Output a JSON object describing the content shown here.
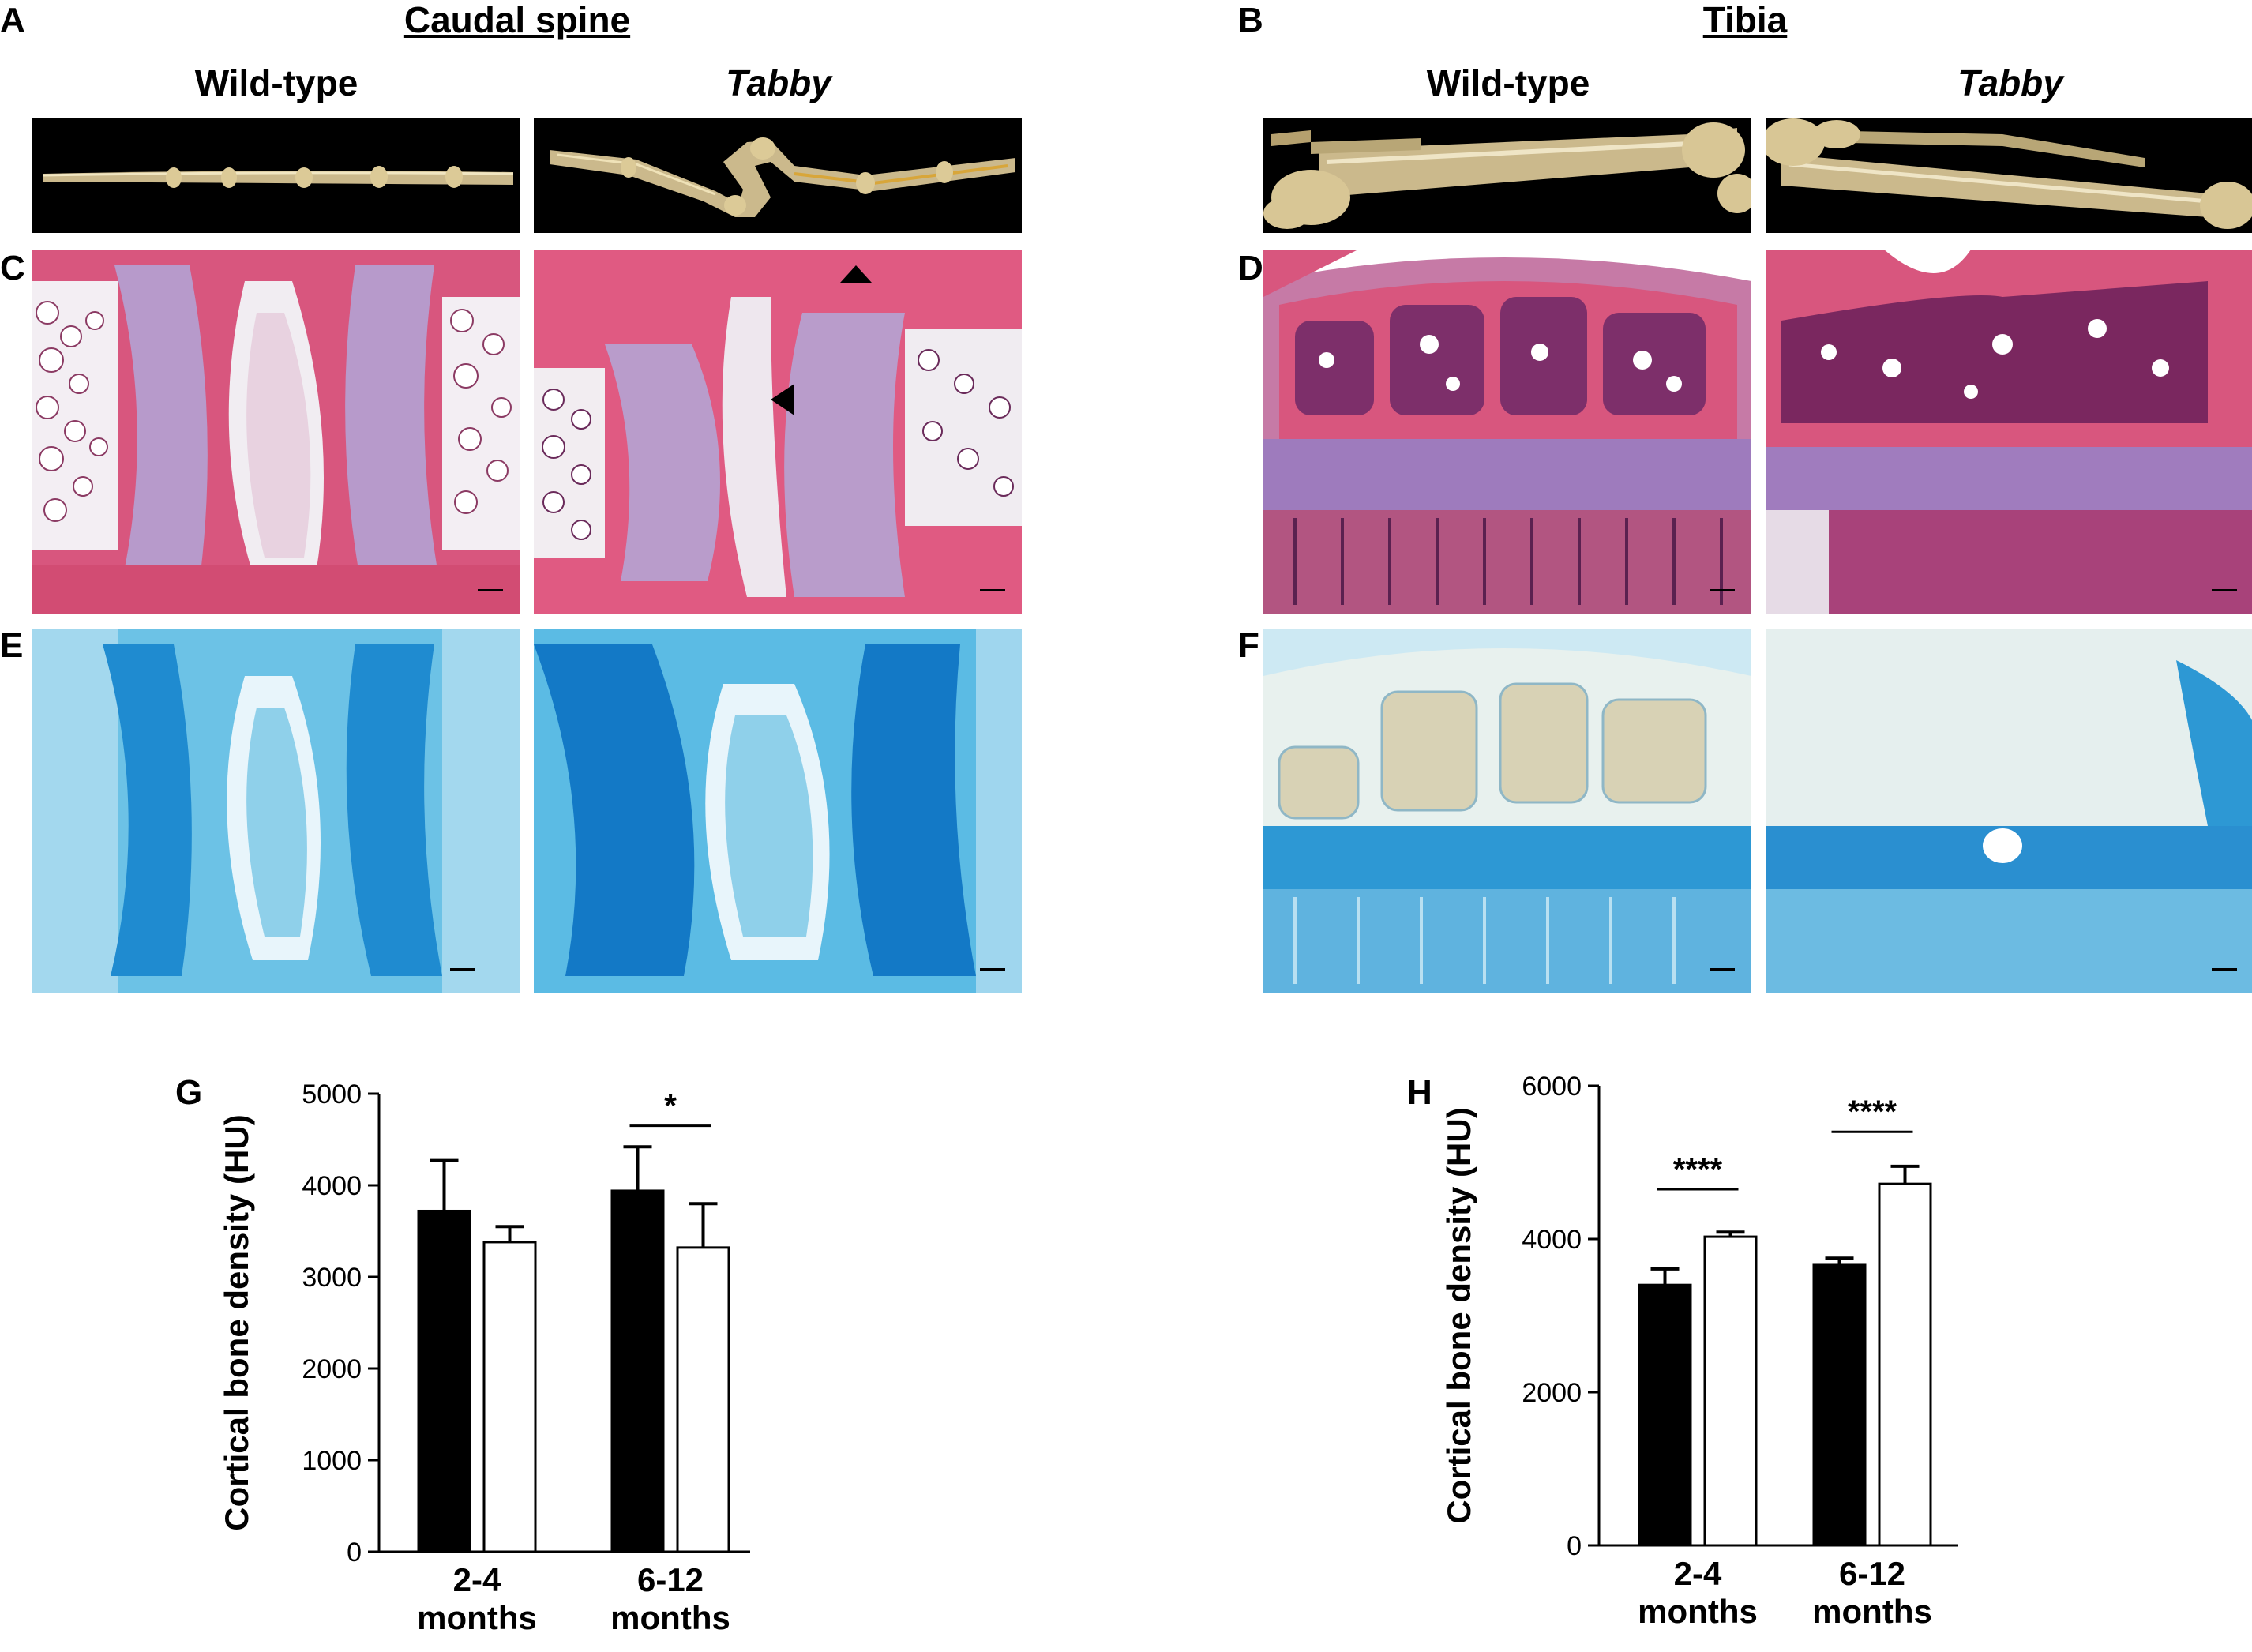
{
  "figure": {
    "letters": [
      "A",
      "B",
      "C",
      "D",
      "E",
      "F",
      "G",
      "H"
    ],
    "section_titles": {
      "left": "Caudal spine",
      "right": "Tibia"
    },
    "column_titles": {
      "wild_type": "Wild-type",
      "tabby": "Tabby"
    }
  },
  "colors": {
    "ct_bone": "#cbb98c",
    "he_pink": "#d8567e",
    "he_purple": "#7d4a9a",
    "alcian_blue": "#1e8fd0",
    "alcian_light": "#9fd6ee",
    "wild_type_bar": "#000000",
    "tabby_bar": "#ffffff"
  },
  "chart_data": [
    {
      "type": "bar",
      "panel": "G",
      "categories": [
        "2-4\nmonths",
        "6-12\nmonths"
      ],
      "category_lines": [
        [
          "2-4",
          "months"
        ],
        [
          "6-12",
          "months"
        ]
      ],
      "series": [
        {
          "values": [
            3720,
            3940
          ],
          "errors": [
            550,
            480
          ],
          "fill": "#000000"
        },
        {
          "values": [
            3380,
            3320
          ],
          "errors": [
            170,
            480
          ],
          "fill": "#ffffff"
        }
      ],
      "ylabel": "Cortical bone density (HU)",
      "ylim": [
        0,
        5000
      ],
      "yticks": [
        0,
        1000,
        2000,
        3000,
        4000,
        5000
      ],
      "ytick_labels": [
        "0",
        "1000",
        "2000",
        "3000",
        "4000",
        "5000"
      ],
      "significance": [
        {
          "category_index": 1,
          "label": "*",
          "y": 4650
        }
      ]
    },
    {
      "type": "bar",
      "panel": "H",
      "categories": [
        "2-4\nmonths",
        "6-12\nmonths"
      ],
      "category_lines": [
        [
          "2-4",
          "months"
        ],
        [
          "6-12",
          "months"
        ]
      ],
      "series": [
        {
          "values": [
            3400,
            3660
          ],
          "errors": [
            210,
            90
          ],
          "fill": "#000000"
        },
        {
          "values": [
            4030,
            4720
          ],
          "errors": [
            60,
            230
          ],
          "fill": "#ffffff"
        }
      ],
      "ylabel": "Cortical bone density (HU)",
      "ylim": [
        0,
        6000
      ],
      "yticks": [
        0,
        2000,
        4000,
        6000
      ],
      "ytick_labels": [
        "0",
        "2000",
        "4000",
        "6000"
      ],
      "significance": [
        {
          "category_index": 0,
          "label": "****",
          "y": 4650
        },
        {
          "category_index": 1,
          "label": "****",
          "y": 5400
        }
      ]
    }
  ]
}
